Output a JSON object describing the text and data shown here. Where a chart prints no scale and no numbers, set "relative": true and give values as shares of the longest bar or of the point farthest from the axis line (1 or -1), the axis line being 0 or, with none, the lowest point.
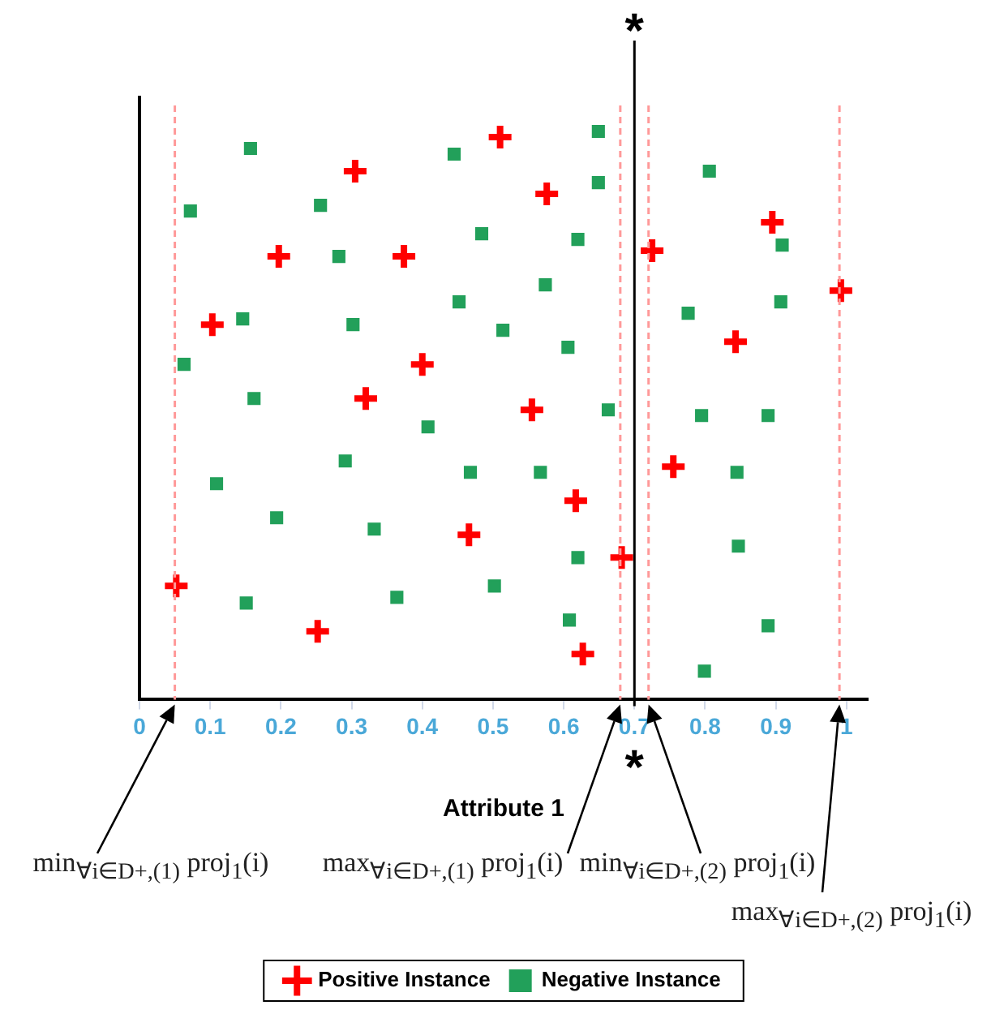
{
  "chart_data": {
    "type": "scatter",
    "xlabel": "Attribute 1",
    "relative": true,
    "xlim": [
      0,
      1.03
    ],
    "xticks": [
      0,
      0.1,
      0.2,
      0.3,
      0.4,
      0.5,
      0.6,
      0.7,
      0.8,
      0.9,
      1
    ],
    "grid": false,
    "legend": "bottom",
    "series": [
      {
        "name": "Positive Instance",
        "color": "#ff0000",
        "marker": "cross",
        "x": [
          0.51,
          0.305,
          0.576,
          0.197,
          0.374,
          0.103,
          0.4,
          0.32,
          0.555,
          0.466,
          0.052,
          0.252,
          0.617,
          0.725,
          0.895,
          0.992,
          0.843,
          0.755,
          0.682,
          0.627
        ],
        "values": [
          0.99,
          0.93,
          0.89,
          0.78,
          0.78,
          0.66,
          0.59,
          0.53,
          0.51,
          0.29,
          0.2,
          0.12,
          0.35,
          0.79,
          0.84,
          0.72,
          0.63,
          0.41,
          0.25,
          0.08
        ]
      },
      {
        "name": "Negative Instance",
        "color": "#22a05a",
        "marker": "square",
        "x": [
          0.157,
          0.445,
          0.072,
          0.256,
          0.484,
          0.282,
          0.62,
          0.574,
          0.452,
          0.146,
          0.302,
          0.514,
          0.606,
          0.063,
          0.162,
          0.408,
          0.291,
          0.468,
          0.567,
          0.109,
          0.194,
          0.332,
          0.62,
          0.151,
          0.364,
          0.502,
          0.608,
          0.649,
          0.649,
          0.663,
          0.806,
          0.909,
          0.776,
          0.907,
          0.795,
          0.889,
          0.845,
          0.847,
          0.889,
          0.799
        ],
        "values": [
          0.97,
          0.96,
          0.86,
          0.87,
          0.82,
          0.78,
          0.81,
          0.73,
          0.7,
          0.67,
          0.66,
          0.65,
          0.62,
          0.59,
          0.53,
          0.48,
          0.42,
          0.4,
          0.4,
          0.38,
          0.32,
          0.3,
          0.25,
          0.17,
          0.18,
          0.2,
          0.14,
          1.0,
          0.91,
          0.51,
          0.93,
          0.8,
          0.68,
          0.7,
          0.5,
          0.5,
          0.4,
          0.27,
          0.13,
          0.05
        ]
      }
    ],
    "ref_lines": [
      {
        "axis": "x",
        "value": 0.05,
        "color": "#ff9999",
        "line_style": "dashed"
      },
      {
        "axis": "x",
        "value": 0.68,
        "color": "#ff9999",
        "line_style": "dashed"
      },
      {
        "axis": "x",
        "value": 0.72,
        "color": "#ff9999",
        "line_style": "dashed"
      },
      {
        "axis": "x",
        "value": 0.99,
        "color": "#ff9999",
        "line_style": "dashed"
      },
      {
        "axis": "x",
        "value": 0.7,
        "label": "*",
        "color": "#000000",
        "line_style": "solid"
      }
    ],
    "annotations": [
      "min$_{∀i∈D+,(1)}$ proj$_{1}$(i)",
      "max$_{∀i∈D+,(1)}$ proj$_{1}$(i)",
      "min$_{∀i∈D+,(2)}$ proj$_{1}$(i)",
      "max$_{∀i∈D+,(2)}$ proj$_{1}$(i)",
      {
        "text": "*",
        "x": 0.7,
        "y": 0
      }
    ]
  }
}
